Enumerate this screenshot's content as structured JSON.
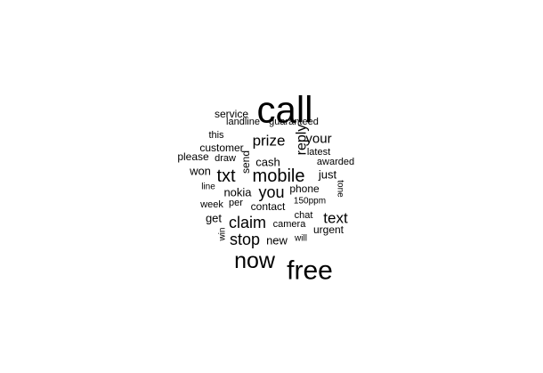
{
  "words": [
    {
      "text": "call",
      "frequency": 100
    },
    {
      "text": "free",
      "frequency": 68
    },
    {
      "text": "now",
      "frequency": 62
    },
    {
      "text": "mobile",
      "frequency": 42
    },
    {
      "text": "txt",
      "frequency": 40
    },
    {
      "text": "claim",
      "frequency": 38
    },
    {
      "text": "you",
      "frequency": 36
    },
    {
      "text": "stop",
      "frequency": 36
    },
    {
      "text": "prize",
      "frequency": 35
    },
    {
      "text": "text",
      "frequency": 34
    },
    {
      "text": "reply",
      "frequency": 33
    },
    {
      "text": "your",
      "frequency": 30
    },
    {
      "text": "cash",
      "frequency": 28
    },
    {
      "text": "just",
      "frequency": 27
    },
    {
      "text": "nokia",
      "frequency": 26
    },
    {
      "text": "won",
      "frequency": 26
    },
    {
      "text": "get",
      "frequency": 26
    },
    {
      "text": "new",
      "frequency": 26
    },
    {
      "text": "phone",
      "frequency": 25
    },
    {
      "text": "contact",
      "frequency": 25
    },
    {
      "text": "urgent",
      "frequency": 25
    },
    {
      "text": "customer",
      "frequency": 24
    },
    {
      "text": "service",
      "frequency": 24
    },
    {
      "text": "please",
      "frequency": 24
    },
    {
      "text": "send",
      "frequency": 23
    },
    {
      "text": "this",
      "frequency": 22
    },
    {
      "text": "draw",
      "frequency": 22
    },
    {
      "text": "landline",
      "frequency": 22
    },
    {
      "text": "guaranteed",
      "frequency": 22
    },
    {
      "text": "latest",
      "frequency": 22
    },
    {
      "text": "awarded",
      "frequency": 22
    },
    {
      "text": "chat",
      "frequency": 22
    },
    {
      "text": "week",
      "frequency": 22
    },
    {
      "text": "per",
      "frequency": 22
    },
    {
      "text": "camera",
      "frequency": 21
    },
    {
      "text": "line",
      "frequency": 21
    },
    {
      "text": "150ppm",
      "frequency": 21
    },
    {
      "text": "tone",
      "frequency": 21
    },
    {
      "text": "win",
      "frequency": 21
    },
    {
      "text": "will",
      "frequency": 21
    }
  ]
}
